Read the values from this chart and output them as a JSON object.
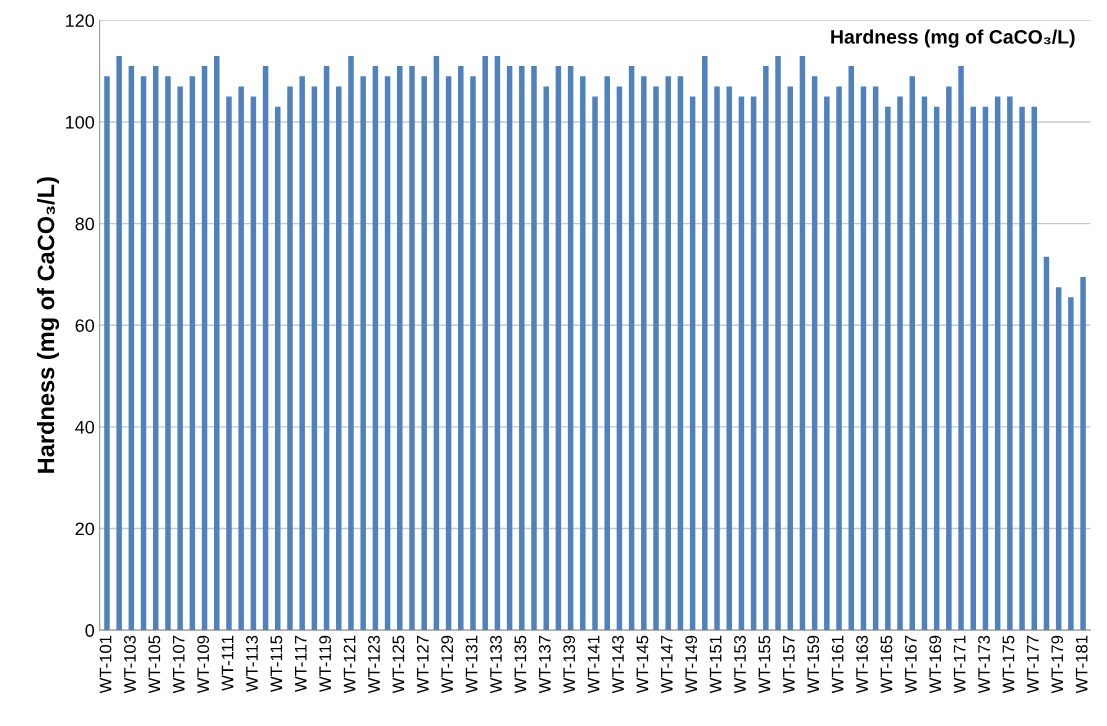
{
  "chart_data": {
    "type": "bar",
    "title": "Hardness (mg of CaCO₃/L)",
    "ylabel": "Hardness (mg of CaCO₃/L)",
    "categories": [
      "WT-101",
      null,
      "WT-103",
      null,
      "WT-105",
      null,
      "WT-107",
      null,
      "WT-109",
      null,
      "WT-111",
      null,
      "WT-113",
      null,
      "WT-115",
      null,
      "WT-117",
      null,
      "WT-119",
      null,
      "WT-121",
      null,
      "WT-123",
      null,
      "WT-125",
      null,
      "WT-127",
      null,
      "WT-129",
      null,
      "WT-131",
      null,
      "WT-133",
      null,
      "WT-135",
      null,
      "WT-137",
      null,
      "WT-139",
      null,
      "WT-141",
      null,
      "WT-143",
      null,
      "WT-145",
      null,
      "WT-147",
      null,
      "WT-149",
      null,
      "WT-151",
      null,
      "WT-153",
      null,
      "WT-155",
      null,
      "WT-157",
      null,
      "WT-159",
      null,
      "WT-161",
      null,
      "WT-163",
      null,
      "WT-165",
      null,
      "WT-167",
      null,
      "WT-169",
      null,
      "WT-171",
      null,
      "WT-173",
      null,
      "WT-175",
      null,
      "WT-177",
      null,
      "WT-179",
      null,
      "WT-181"
    ],
    "values": [
      109,
      113,
      111,
      109,
      111,
      109,
      107,
      109,
      111,
      113,
      105,
      107,
      105,
      111,
      103,
      107,
      109,
      107,
      111,
      107,
      113,
      109,
      111,
      109,
      111,
      111,
      109,
      113,
      109,
      111,
      109,
      113,
      113,
      111,
      111,
      111,
      107,
      111,
      111,
      109,
      105,
      109,
      107,
      111,
      109,
      107,
      109,
      109,
      105,
      113,
      107,
      107,
      105,
      105,
      111,
      113,
      107,
      113,
      109,
      105,
      107,
      111,
      107,
      107,
      103,
      105,
      109,
      105,
      103,
      107,
      111,
      103,
      103,
      105,
      105,
      103,
      103,
      73.5,
      67.5,
      65.5,
      69.5
    ],
    "color": "#4f81bd",
    "ylim": [
      0,
      120
    ],
    "yticks": [
      0,
      20,
      40,
      60,
      80,
      100,
      120
    ],
    "grid": "y"
  }
}
